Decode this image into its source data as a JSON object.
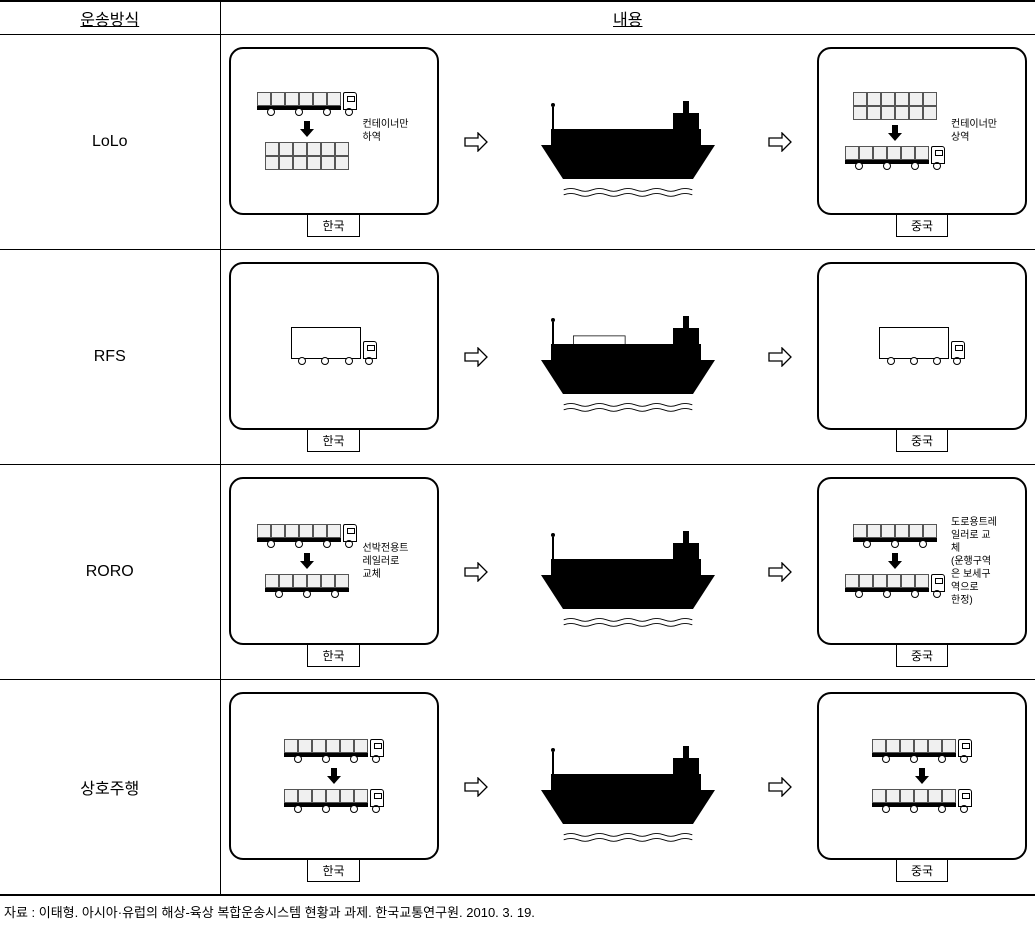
{
  "headers": {
    "method": "운송방식",
    "content": "내용"
  },
  "rows": [
    {
      "method": "LoLo",
      "left_country": "한국",
      "right_country": "중국",
      "left_note": "컨테이너만\n하역",
      "right_note": "컨테이너만\n상역",
      "type": "lolo"
    },
    {
      "method": "RFS",
      "left_country": "한국",
      "right_country": "중국",
      "left_note": "",
      "right_note": "",
      "type": "rfs"
    },
    {
      "method": "RORO",
      "left_country": "한국",
      "right_country": "중국",
      "left_note": "선박전용트레일러로\n교체",
      "right_note": "도로용트레일러로 교체\n(운행구역은 보세구역으로\n한정)",
      "type": "roro"
    },
    {
      "method": "상호주행",
      "left_country": "한국",
      "right_country": "중국",
      "left_note": "",
      "right_note": "",
      "type": "cross"
    }
  ],
  "citation": "자료 : 이태형. 아시아·유럽의 해상-육상 복합운송시스템 현황과 과제. 한국교통연구원. 2010. 3. 19.",
  "colors": {
    "ship_fill": "#000000",
    "box_fill": "#f0f0f0",
    "line": "#000000"
  }
}
